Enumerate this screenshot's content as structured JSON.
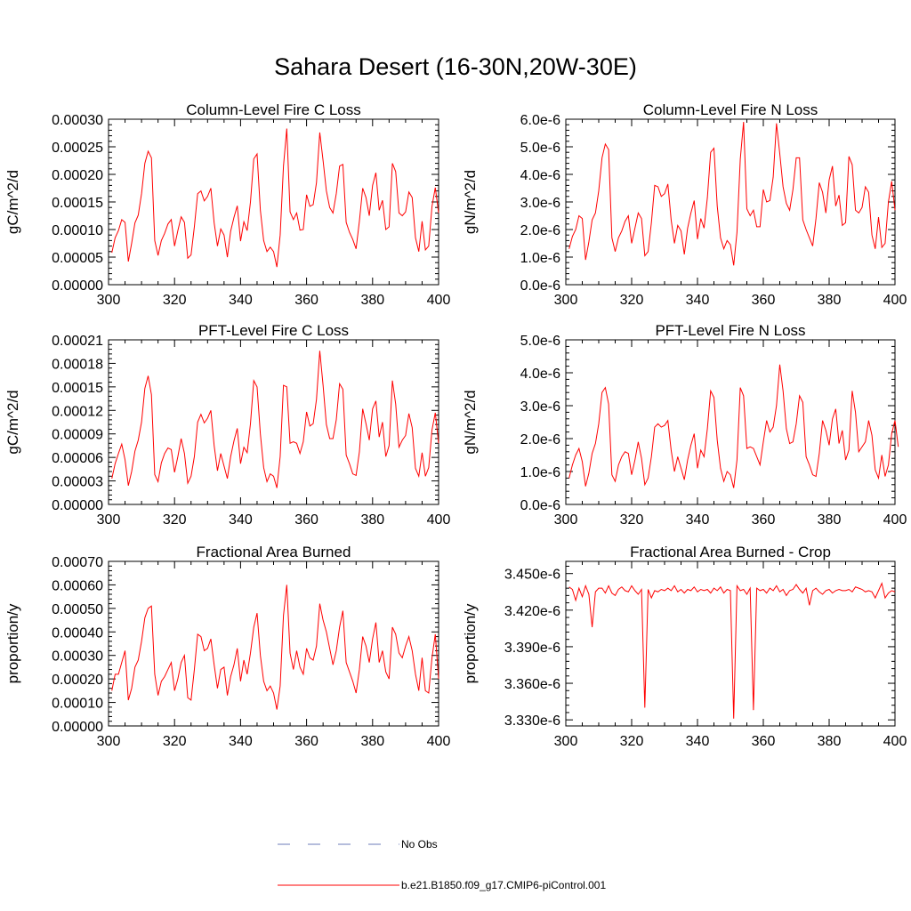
{
  "title": "Sahara Desert (16-30N,20W-30E)",
  "colors": {
    "model": "#ff0000",
    "obs": "#6b7bb8",
    "axis": "#000000"
  },
  "legend": {
    "obs_label": "No Obs",
    "model_label": "b.e21.B1850.f09_g17.CMIP6-piControl.001"
  },
  "chart_data": [
    {
      "type": "line",
      "title": "Column-Level Fire C Loss",
      "xlabel": "",
      "ylabel": "gC/m^2/d",
      "xlim": [
        300,
        400
      ],
      "ylim": [
        0,
        0.0003
      ],
      "xticks": [
        300,
        320,
        340,
        360,
        380,
        400
      ],
      "yticks": [
        0,
        5e-05,
        0.0001,
        0.00015,
        0.0002,
        0.00025,
        0.0003
      ],
      "ytick_labels": [
        "0.00000",
        "0.00005",
        "0.00010",
        "0.00015",
        "0.00020",
        "0.00025",
        "0.00030"
      ],
      "series": [
        {
          "name": "b.e21.B1850.f09_g17.CMIP6-piControl.001",
          "x_start": 301,
          "x_step": 1,
          "values": [
            5.8e-05,
            8.5e-05,
            9.8e-05,
            0.000118,
            0.000113,
            4.2e-05,
            7.5e-05,
            0.000112,
            0.000126,
            0.000165,
            0.00022,
            0.000242,
            0.00023,
            8e-05,
            5.3e-05,
            8e-05,
            9.3e-05,
            0.00011,
            0.000118,
            7e-05,
            9.8e-05,
            0.000123,
            0.000113,
            4.8e-05,
            5.4e-05,
            0.000105,
            0.000165,
            0.00017,
            0.000152,
            0.00016,
            0.000175,
            0.000112,
            7e-05,
            0.000101,
            9e-05,
            5e-05,
            9.7e-05,
            0.000122,
            0.000143,
            7.9e-05,
            0.000114,
            9.8e-05,
            0.00015,
            0.000228,
            0.000237,
            0.000135,
            8e-05,
            6e-05,
            6.8e-05,
            6e-05,
            3.2e-05,
            9e-05,
            0.000215,
            0.000283,
            0.000132,
            0.000118,
            0.00013,
            9.9e-05,
            0.0001,
            0.000163,
            0.000142,
            0.000145,
            0.000185,
            0.000276,
            0.000225,
            0.00017,
            0.00014,
            0.00013,
            0.000165,
            0.000215,
            0.000218,
            0.000113,
            9.5e-05,
            8.2e-05,
            6.5e-05,
            0.000115,
            0.000175,
            0.000158,
            0.000125,
            0.00018,
            0.000203,
            0.000135,
            0.000153,
            0.0001,
            0.000105,
            0.00022,
            0.000205,
            0.00013,
            0.000125,
            0.000132,
            0.000168,
            0.000158,
            8.5e-05,
            6e-05,
            0.000115,
            6.3e-05,
            7e-05,
            0.000142,
            0.000176,
            0.00013
          ]
        }
      ]
    },
    {
      "type": "line",
      "title": "Column-Level Fire N Loss",
      "xlabel": "",
      "ylabel": "gN/m^2/d",
      "xlim": [
        300,
        400
      ],
      "ylim": [
        0,
        6e-06
      ],
      "xticks": [
        300,
        320,
        340,
        360,
        380,
        400
      ],
      "yticks": [
        0,
        1e-06,
        2e-06,
        3e-06,
        4e-06,
        5e-06,
        6e-06
      ],
      "ytick_labels": [
        "0.0e-6",
        "1.0e-6",
        "2.0e-6",
        "3.0e-6",
        "4.0e-6",
        "5.0e-6",
        "6.0e-6"
      ],
      "series": [
        {
          "name": "b.e21.B1850.f09_g17.CMIP6-piControl.001",
          "x_start": 301,
          "x_step": 1,
          "values": [
            1.3e-06,
            1.75e-06,
            2e-06,
            2.5e-06,
            2.4e-06,
            9e-07,
            1.55e-06,
            2.35e-06,
            2.6e-06,
            3.4e-06,
            4.6e-06,
            5.1e-06,
            4.9e-06,
            1.7e-06,
            1.2e-06,
            1.7e-06,
            1.95e-06,
            2.3e-06,
            2.5e-06,
            1.5e-06,
            2.05e-06,
            2.6e-06,
            2.4e-06,
            1.05e-06,
            1.2e-06,
            2.25e-06,
            3.6e-06,
            3.55e-06,
            3.2e-06,
            3.3e-06,
            3.65e-06,
            2.35e-06,
            1.5e-06,
            2.15e-06,
            1.95e-06,
            1.1e-06,
            2.05e-06,
            2.6e-06,
            3.05e-06,
            1.65e-06,
            2.4e-06,
            2.05e-06,
            3.15e-06,
            4.8e-06,
            4.95e-06,
            2.85e-06,
            1.7e-06,
            1.3e-06,
            1.6e-06,
            1.45e-06,
            7e-07,
            1.9e-06,
            4.55e-06,
            5.9e-06,
            2.75e-06,
            2.5e-06,
            2.7e-06,
            2.1e-06,
            2.1e-06,
            3.45e-06,
            3e-06,
            3.05e-06,
            3.9e-06,
            5.85e-06,
            4.75e-06,
            3.55e-06,
            2.95e-06,
            2.7e-06,
            3.45e-06,
            4.6e-06,
            4.6e-06,
            2.35e-06,
            2e-06,
            1.7e-06,
            1.4e-06,
            2.4e-06,
            3.7e-06,
            3.35e-06,
            2.6e-06,
            3.8e-06,
            4.3e-06,
            2.85e-06,
            3.25e-06,
            2.15e-06,
            2.25e-06,
            4.65e-06,
            4.35e-06,
            2.7e-06,
            2.6e-06,
            2.8e-06,
            3.55e-06,
            3.35e-06,
            1.8e-06,
            1.3e-06,
            2.45e-06,
            1.35e-06,
            1.5e-06,
            3e-06,
            3.75e-06,
            2.7e-06
          ]
        }
      ]
    },
    {
      "type": "line",
      "title": "PFT-Level Fire C Loss",
      "xlabel": "",
      "ylabel": "gC/m^2/d",
      "xlim": [
        300,
        400
      ],
      "ylim": [
        0,
        0.00021
      ],
      "xticks": [
        300,
        320,
        340,
        360,
        380,
        400
      ],
      "yticks": [
        0,
        3e-05,
        6e-05,
        9e-05,
        0.00012,
        0.00015,
        0.00018,
        0.00021
      ],
      "ytick_labels": [
        "0.00000",
        "0.00003",
        "0.00006",
        "0.00009",
        "0.00012",
        "0.00015",
        "0.00018",
        "0.00021"
      ],
      "series": [
        {
          "name": "b.e21.B1850.f09_g17.CMIP6-piControl.001",
          "x_start": 301,
          "x_step": 1,
          "values": [
            3.3e-05,
            5.2e-05,
            6.5e-05,
            7.7e-05,
            5.7e-05,
            2.4e-05,
            4.2e-05,
            6.8e-05,
            8.2e-05,
            0.000105,
            0.000148,
            0.000164,
            0.00014,
            3.8e-05,
            2.9e-05,
            5.3e-05,
            6.5e-05,
            7.2e-05,
            7e-05,
            4.1e-05,
            6.1e-05,
            8.4e-05,
            6.5e-05,
            2.7e-05,
            3.6e-05,
            6.1e-05,
            0.000105,
            0.000115,
            0.000104,
            0.00011,
            0.00012,
            7.5e-05,
            4.3e-05,
            6.5e-05,
            4.9e-05,
            3.3e-05,
            6.1e-05,
            8.1e-05,
            9.7e-05,
            5.2e-05,
            7.3e-05,
            6.6e-05,
            0.000103,
            0.000158,
            0.00015,
            9e-05,
            4.7e-05,
            2.9e-05,
            3.9e-05,
            3.6e-05,
            2.1e-05,
            6.1e-05,
            0.000152,
            0.00015,
            7.8e-05,
            8e-05,
            7.8e-05,
            6.5e-05,
            8e-05,
            0.000118,
            0.0001,
            0.000103,
            0.000134,
            0.000196,
            0.000152,
            0.000102,
            8.4e-05,
            8.4e-05,
            0.000108,
            0.000154,
            0.000147,
            6.3e-05,
            5.2e-05,
            3.9e-05,
            3.7e-05,
            6.7e-05,
            0.000122,
            0.000103,
            8.2e-05,
            0.000122,
            0.000132,
            8.6e-05,
            0.000105,
            6.1e-05,
            7.5e-05,
            0.000158,
            0.000128,
            7.3e-05,
            8.2e-05,
            8.8e-05,
            0.000116,
            9.8e-05,
            4.6e-05,
            3.6e-05,
            6.6e-05,
            3.6e-05,
            4.7e-05,
            9.5e-05,
            0.000117,
            7.8e-05
          ]
        }
      ]
    },
    {
      "type": "line",
      "title": "PFT-Level Fire N Loss",
      "xlabel": "",
      "ylabel": "gN/m^2/d",
      "xlim": [
        300,
        400
      ],
      "ylim": [
        0,
        5e-06
      ],
      "xticks": [
        300,
        320,
        340,
        360,
        380,
        400
      ],
      "yticks": [
        0,
        1e-06,
        2e-06,
        3e-06,
        4e-06,
        5e-06
      ],
      "ytick_labels": [
        "0.0e-6",
        "1.0e-6",
        "2.0e-6",
        "3.0e-6",
        "4.0e-6",
        "5.0e-6"
      ],
      "series": [
        {
          "name": "b.e21.B1850.f09_g17.CMIP6-piControl.001",
          "x_start": 301,
          "x_step": 1,
          "values": [
            8e-07,
            1.2e-06,
            1.5e-06,
            1.7e-06,
            1.3e-06,
            5.5e-07,
            9.5e-07,
            1.55e-06,
            1.85e-06,
            2.45e-06,
            3.4e-06,
            3.55e-06,
            3.05e-06,
            9e-07,
            7e-07,
            1.2e-06,
            1.45e-06,
            1.6e-06,
            1.55e-06,
            9e-07,
            1.35e-06,
            1.9e-06,
            1.4e-06,
            6e-07,
            8e-07,
            1.45e-06,
            2.35e-06,
            2.45e-06,
            2.35e-06,
            2.4e-06,
            2.55e-06,
            1.65e-06,
            1e-06,
            1.45e-06,
            1.1e-06,
            7.5e-07,
            1.35e-06,
            1.8e-06,
            2.15e-06,
            1.1e-06,
            1.65e-06,
            1.45e-06,
            2.3e-06,
            3.45e-06,
            3.25e-06,
            1.95e-06,
            1.1e-06,
            7e-07,
            1e-06,
            9e-07,
            5e-07,
            1.35e-06,
            3.55e-06,
            3.3e-06,
            1.7e-06,
            1.75e-06,
            1.7e-06,
            1.45e-06,
            1.2e-06,
            1.9e-06,
            2.55e-06,
            2.2e-06,
            2.35e-06,
            3e-06,
            4.25e-06,
            3.45e-06,
            2.3e-06,
            1.85e-06,
            1.9e-06,
            2.45e-06,
            3.3e-06,
            3.1e-06,
            1.45e-06,
            1.2e-06,
            9e-07,
            8.5e-07,
            1.55e-06,
            2.55e-06,
            2.25e-06,
            1.8e-06,
            2.6e-06,
            2.9e-06,
            1.85e-06,
            2.25e-06,
            1.35e-06,
            1.65e-06,
            3.45e-06,
            2.8e-06,
            1.6e-06,
            1.75e-06,
            1.9e-06,
            2.55e-06,
            2.1e-06,
            1.05e-06,
            8e-07,
            1.5e-06,
            8.5e-07,
            1.2e-06,
            2.15e-06,
            2.55e-06,
            1.75e-06
          ]
        }
      ]
    },
    {
      "type": "line",
      "title": "Fractional Area Burned",
      "xlabel": "",
      "ylabel": "proportion/y",
      "xlim": [
        300,
        400
      ],
      "ylim": [
        0,
        0.0007
      ],
      "xticks": [
        300,
        320,
        340,
        360,
        380,
        400
      ],
      "yticks": [
        0,
        0.0001,
        0.0002,
        0.0003,
        0.0004,
        0.0005,
        0.0006,
        0.0007
      ],
      "ytick_labels": [
        "0.00000",
        "0.00010",
        "0.00020",
        "0.00030",
        "0.00040",
        "0.00050",
        "0.00060",
        "0.00070"
      ],
      "series": [
        {
          "name": "b.e21.B1850.f09_g17.CMIP6-piControl.001",
          "x_start": 301,
          "x_step": 1,
          "values": [
            0.00015,
            0.00022,
            0.00022,
            0.00027,
            0.00032,
            0.00011,
            0.00016,
            0.00025,
            0.00028,
            0.00036,
            0.00046,
            0.0005,
            0.00051,
            0.00022,
            0.00013,
            0.00019,
            0.00021,
            0.00024,
            0.00027,
            0.00015,
            0.0002,
            0.00027,
            0.0003,
            0.00012,
            0.00011,
            0.00024,
            0.00039,
            0.00038,
            0.00032,
            0.00033,
            0.00037,
            0.00026,
            0.00016,
            0.00024,
            0.00025,
            0.00013,
            0.00021,
            0.00026,
            0.00033,
            0.00019,
            0.00028,
            0.00022,
            0.00031,
            0.00042,
            0.00048,
            0.0003,
            0.00019,
            0.00015,
            0.00017,
            0.00014,
            7e-05,
            0.00017,
            0.00047,
            0.0006,
            0.00031,
            0.00024,
            0.00032,
            0.00025,
            0.00022,
            0.00033,
            0.00029,
            0.00028,
            0.00034,
            0.00052,
            0.00045,
            0.0004,
            0.00033,
            0.00026,
            0.00032,
            0.00042,
            0.00049,
            0.00027,
            0.00023,
            0.00019,
            0.00014,
            0.00024,
            0.00038,
            0.00034,
            0.00027,
            0.00037,
            0.00044,
            0.00027,
            0.00032,
            0.00023,
            0.0002,
            0.00042,
            0.00039,
            0.00031,
            0.00029,
            0.00034,
            0.00038,
            0.00032,
            0.00022,
            0.00015,
            0.00029,
            0.00015,
            0.00014,
            0.00029,
            0.00039,
            0.0002
          ]
        }
      ]
    },
    {
      "type": "line",
      "title": "Fractional Area Burned - Crop",
      "xlabel": "",
      "ylabel": "proportion/y",
      "xlim": [
        300,
        400
      ],
      "ylim": [
        3.325e-06,
        3.46e-06
      ],
      "xticks": [
        300,
        320,
        340,
        360,
        380,
        400
      ],
      "yticks": [
        3.33e-06,
        3.36e-06,
        3.39e-06,
        3.42e-06,
        3.45e-06
      ],
      "ytick_labels": [
        "3.330e-6",
        "3.360e-6",
        "3.390e-6",
        "3.420e-6",
        "3.450e-6"
      ],
      "series": [
        {
          "name": "b.e21.B1850.f09_g17.CMIP6-piControl.001",
          "x_start": 301,
          "x_step": 1,
          "values": [
            3.439e-06,
            3.437e-06,
            3.428e-06,
            3.438e-06,
            3.431e-06,
            3.44e-06,
            3.433e-06,
            3.406e-06,
            3.435e-06,
            3.438e-06,
            3.438e-06,
            3.434e-06,
            3.44e-06,
            3.434e-06,
            3.432e-06,
            3.437e-06,
            3.439e-06,
            3.436e-06,
            3.435e-06,
            3.44e-06,
            3.436e-06,
            3.433e-06,
            3.437e-06,
            3.34e-06,
            3.437e-06,
            3.43e-06,
            3.436e-06,
            3.435e-06,
            3.437e-06,
            3.436e-06,
            3.438e-06,
            3.436e-06,
            3.44e-06,
            3.435e-06,
            3.437e-06,
            3.434e-06,
            3.437e-06,
            3.436e-06,
            3.439e-06,
            3.435e-06,
            3.437e-06,
            3.436e-06,
            3.437e-06,
            3.434e-06,
            3.438e-06,
            3.436e-06,
            3.439e-06,
            3.434e-06,
            3.437e-06,
            3.436e-06,
            3.331e-06,
            3.44e-06,
            3.436e-06,
            3.437e-06,
            3.433e-06,
            3.438e-06,
            3.338e-06,
            3.438e-06,
            3.436e-06,
            3.437e-06,
            3.434e-06,
            3.438e-06,
            3.436e-06,
            3.44e-06,
            3.435e-06,
            3.437e-06,
            3.432e-06,
            3.436e-06,
            3.437e-06,
            3.441e-06,
            3.437e-06,
            3.434e-06,
            3.438e-06,
            3.424e-06,
            3.436e-06,
            3.438e-06,
            3.435e-06,
            3.433e-06,
            3.436e-06,
            3.437e-06,
            3.434e-06,
            3.436e-06,
            3.437e-06,
            3.436e-06,
            3.436e-06,
            3.437e-06,
            3.435e-06,
            3.439e-06,
            3.438e-06,
            3.437e-06,
            3.435e-06,
            3.436e-06,
            3.435e-06,
            3.43e-06,
            3.436e-06,
            3.442e-06,
            3.43e-06,
            3.434e-06,
            3.436e-06,
            3.435e-06
          ]
        }
      ]
    }
  ]
}
